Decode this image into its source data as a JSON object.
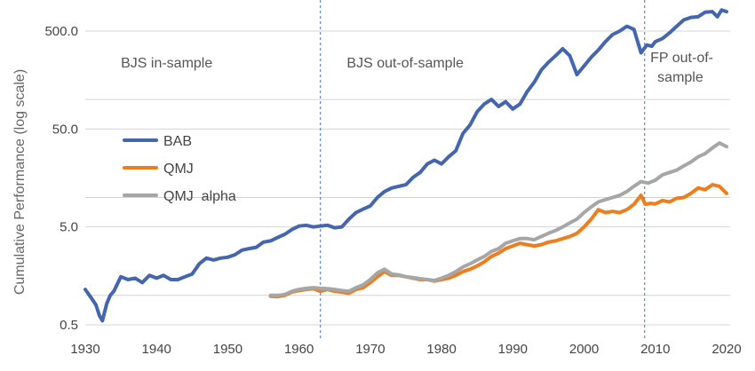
{
  "chart_data": {
    "type": "line",
    "title": "",
    "xlabel": "",
    "ylabel": "Cumulative Performance (log scale)",
    "y_scale": "log",
    "xlim": [
      1930,
      2020
    ],
    "ylim": [
      0.5,
      800
    ],
    "x_ticks": [
      "1930",
      "1940",
      "1950",
      "1960",
      "1970",
      "1980",
      "1990",
      "2000",
      "2010",
      "2020"
    ],
    "y_ticks": [
      "0.5",
      "5.0",
      "50.0",
      "500.0"
    ],
    "grid": true,
    "legend": {
      "placement": "center-left"
    },
    "dividers": [
      1963,
      2008.5
    ],
    "annotations": [
      {
        "text": "BJS in-sample",
        "x": 1935
      },
      {
        "text": "BJS out-of-sample",
        "x": 1966.7
      },
      {
        "text": "FP out-of-",
        "x": 2009.3
      },
      {
        "text": "sample",
        "x": 2010.3
      }
    ],
    "series": [
      {
        "name": "BAB",
        "color": "#4466b0",
        "x": [
          1930,
          1930.8,
          1931.5,
          1932,
          1932.4,
          1933,
          1933.5,
          1934,
          1935,
          1936,
          1937,
          1938,
          1939,
          1940,
          1941,
          1942,
          1943,
          1944,
          1945,
          1946,
          1947,
          1948,
          1949,
          1950,
          1951,
          1952,
          1953,
          1954,
          1955,
          1956,
          1957,
          1958,
          1959,
          1960,
          1961,
          1962,
          1963,
          1964,
          1965,
          1966,
          1967,
          1968,
          1969,
          1970,
          1971,
          1972,
          1973,
          1974,
          1975,
          1976,
          1977,
          1978,
          1979,
          1980,
          1981,
          1982,
          1983,
          1984,
          1985,
          1986,
          1987,
          1988,
          1989,
          1990,
          1991,
          1992,
          1993,
          1994,
          1995,
          1996,
          1997,
          1998,
          1999,
          2000,
          2001,
          2002,
          2003,
          2004,
          2005,
          2006,
          2007,
          2008,
          2008.8,
          2009.5,
          2010,
          2011,
          2012,
          2013,
          2014,
          2015,
          2016,
          2017,
          2018,
          2018.7,
          2019.3,
          2020
        ],
        "values": [
          1.15,
          0.95,
          0.8,
          0.62,
          0.55,
          0.82,
          1.0,
          1.1,
          1.55,
          1.45,
          1.5,
          1.35,
          1.6,
          1.5,
          1.6,
          1.45,
          1.45,
          1.55,
          1.65,
          2.1,
          2.4,
          2.3,
          2.4,
          2.45,
          2.6,
          2.9,
          3.0,
          3.1,
          3.5,
          3.6,
          3.9,
          4.2,
          4.7,
          5.1,
          5.2,
          5.0,
          5.1,
          5.2,
          4.9,
          5.0,
          6.0,
          7.0,
          7.6,
          8.2,
          10.0,
          11.5,
          12.5,
          13.0,
          13.5,
          16.0,
          18.0,
          22.0,
          24.0,
          22.0,
          26.0,
          30.0,
          45.0,
          55.0,
          75.0,
          90.0,
          100.0,
          85.0,
          95.0,
          80.0,
          90.0,
          120.0,
          150.0,
          200.0,
          240.0,
          280.0,
          330.0,
          280.0,
          180.0,
          220.0,
          270.0,
          320.0,
          390.0,
          460.0,
          500.0,
          560.0,
          520.0,
          300.0,
          360.0,
          350.0,
          390.0,
          420.0,
          480.0,
          560.0,
          650.0,
          690.0,
          700.0,
          780.0,
          790.0,
          700.0,
          820.0,
          790.0
        ]
      },
      {
        "name": "QMJ",
        "color": "#ee7d1e",
        "x": [
          1956,
          1957,
          1958,
          1959,
          1960,
          1961,
          1962,
          1963,
          1964,
          1965,
          1966,
          1967,
          1968,
          1969,
          1970,
          1971,
          1972,
          1973,
          1974,
          1975,
          1976,
          1977,
          1978,
          1979,
          1980,
          1981,
          1982,
          1983,
          1984,
          1985,
          1986,
          1987,
          1988,
          1989,
          1990,
          1991,
          1992,
          1993,
          1994,
          1995,
          1996,
          1997,
          1998,
          1999,
          2000,
          2001,
          2002,
          2003,
          2004,
          2005,
          2006,
          2007,
          2008,
          2008.6,
          2009.3,
          2010,
          2011,
          2012,
          2013,
          2014,
          2015,
          2016,
          2017,
          2018,
          2019,
          2020
        ],
        "values": [
          0.98,
          0.97,
          1.0,
          1.08,
          1.12,
          1.15,
          1.17,
          1.1,
          1.15,
          1.1,
          1.08,
          1.05,
          1.15,
          1.2,
          1.35,
          1.55,
          1.75,
          1.6,
          1.6,
          1.55,
          1.5,
          1.45,
          1.45,
          1.4,
          1.45,
          1.5,
          1.6,
          1.75,
          1.85,
          2.0,
          2.2,
          2.5,
          2.7,
          3.0,
          3.2,
          3.4,
          3.3,
          3.2,
          3.3,
          3.5,
          3.6,
          3.8,
          4.0,
          4.3,
          5.0,
          6.0,
          7.5,
          7.0,
          7.2,
          7.0,
          7.5,
          8.5,
          10.5,
          8.5,
          8.7,
          8.6,
          9.3,
          9.0,
          9.8,
          10.0,
          11.0,
          12.5,
          12.0,
          13.5,
          13.0,
          11.0
        ]
      },
      {
        "name": "QMJ  alpha",
        "color": "#a6a6a6",
        "x": [
          1956,
          1957,
          1958,
          1959,
          1960,
          1961,
          1962,
          1963,
          1964,
          1965,
          1966,
          1967,
          1968,
          1969,
          1970,
          1971,
          1972,
          1973,
          1974,
          1975,
          1976,
          1977,
          1978,
          1979,
          1980,
          1981,
          1982,
          1983,
          1984,
          1985,
          1986,
          1987,
          1988,
          1989,
          1990,
          1991,
          1992,
          1993,
          1994,
          1995,
          1996,
          1997,
          1998,
          1999,
          2000,
          2001,
          2002,
          2003,
          2004,
          2005,
          2006,
          2007,
          2008,
          2009,
          2010,
          2011,
          2012,
          2013,
          2014,
          2015,
          2016,
          2017,
          2018,
          2019,
          2020
        ],
        "values": [
          1.0,
          1.0,
          1.02,
          1.1,
          1.15,
          1.18,
          1.2,
          1.18,
          1.17,
          1.15,
          1.12,
          1.1,
          1.2,
          1.28,
          1.45,
          1.7,
          1.85,
          1.65,
          1.62,
          1.55,
          1.52,
          1.48,
          1.45,
          1.42,
          1.5,
          1.6,
          1.75,
          1.95,
          2.1,
          2.3,
          2.5,
          2.8,
          3.0,
          3.4,
          3.6,
          3.8,
          3.8,
          3.7,
          4.0,
          4.3,
          4.6,
          5.0,
          5.5,
          6.0,
          7.0,
          8.0,
          9.0,
          9.5,
          10.0,
          10.5,
          11.5,
          13.0,
          14.5,
          14.0,
          15.0,
          17.0,
          18.0,
          19.0,
          21.0,
          23.0,
          26.0,
          28.0,
          32.0,
          36.0,
          33.0
        ]
      }
    ]
  }
}
